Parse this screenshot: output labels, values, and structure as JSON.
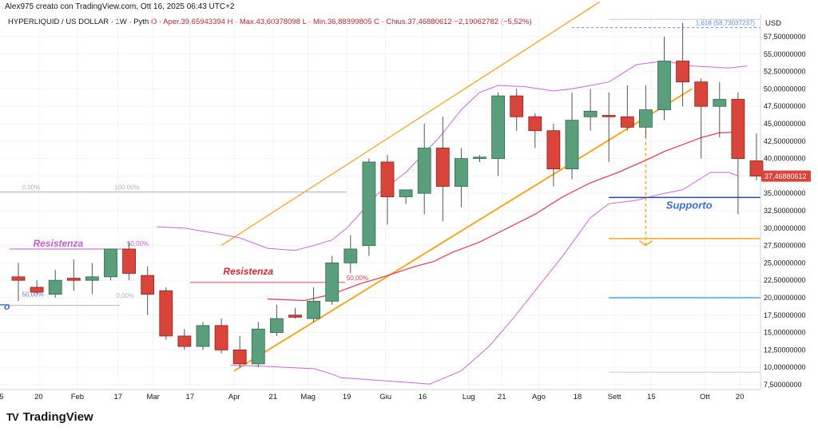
{
  "header": {
    "author_line": "Alex975 creato con TradingView.com, Ott 16, 2025 06:43 UTC+2",
    "symbol": "HYPERLIQUID / US DOLLAR · 1W · Pyth",
    "ohlc": "O · Aper.39,65943394  H · Max.43,60378098  L · Min.36,88899805  C · Chius.37,46880612  −2,19062782 (−5,52%)",
    "currency": "USD"
  },
  "brand": {
    "logo": "TV",
    "name": "TradingView"
  },
  "chart_data": {
    "type": "candlestick",
    "title": "HYPERLIQUID / US DOLLAR · 1W · Pyth",
    "interval": "1W",
    "ylim": [
      7.5,
      62.5
    ],
    "price_ticks": [
      "57,50000000",
      "55,00000000",
      "52,50000000",
      "50,00000000",
      "47,50000000",
      "45,00000000",
      "42,50000000",
      "40,00000000",
      "37,50000000",
      "35,00000000",
      "32,50000000",
      "30,00000000",
      "27,50000000",
      "25,00000000",
      "22,50000000",
      "20,00000000",
      "17,50000000",
      "15,00000000",
      "12,50000000",
      "10,00000000",
      "7,50000000"
    ],
    "price_tick_values": [
      57.5,
      55,
      52.5,
      50,
      47.5,
      45,
      42.5,
      40,
      37.5,
      35,
      32.5,
      30,
      27.5,
      25,
      22.5,
      20,
      17.5,
      15,
      12.5,
      10,
      7.5
    ],
    "x_ticks": [
      {
        "label": "5",
        "i": -1.3
      },
      {
        "label": "20",
        "i": 1.1
      },
      {
        "label": "Feb",
        "i": 3.2
      },
      {
        "label": "17",
        "i": 5.4
      },
      {
        "label": "Mar",
        "i": 7.3
      },
      {
        "label": "17",
        "i": 9.3
      },
      {
        "label": "Apr",
        "i": 11.7
      },
      {
        "label": "21",
        "i": 13.8
      },
      {
        "label": "Mag",
        "i": 15.7
      },
      {
        "label": "19",
        "i": 17.8
      },
      {
        "label": "Giu",
        "i": 19.9
      },
      {
        "label": "16",
        "i": 21.9
      },
      {
        "label": "Lug",
        "i": 24.4
      },
      {
        "label": "21",
        "i": 26.2
      },
      {
        "label": "Ago",
        "i": 28.2
      },
      {
        "label": "18",
        "i": 30.3
      },
      {
        "label": "Sett",
        "i": 32.3
      },
      {
        "label": "15",
        "i": 34.3
      },
      {
        "label": "Ott",
        "i": 37.2
      },
      {
        "label": "20",
        "i": 39.1
      }
    ],
    "last_price_label": "37,46880612",
    "candles": [
      {
        "o": 23.0,
        "h": 25.0,
        "l": 19.5,
        "c": 22.5
      },
      {
        "o": 21.5,
        "h": 22.5,
        "l": 20.5,
        "c": 20.8
      },
      {
        "o": 20.5,
        "h": 24.0,
        "l": 20.0,
        "c": 22.5
      },
      {
        "o": 22.8,
        "h": 25.5,
        "l": 21.0,
        "c": 22.5
      },
      {
        "o": 22.5,
        "h": 25.0,
        "l": 20.5,
        "c": 23.0
      },
      {
        "o": 23.0,
        "h": 27.0,
        "l": 22.5,
        "c": 27.0
      },
      {
        "o": 27.0,
        "h": 28.0,
        "l": 22.5,
        "c": 23.5
      },
      {
        "o": 23.2,
        "h": 24.5,
        "l": 17.5,
        "c": 20.5
      },
      {
        "o": 21.0,
        "h": 21.5,
        "l": 14.0,
        "c": 14.5
      },
      {
        "o": 14.5,
        "h": 15.5,
        "l": 12.5,
        "c": 13.0
      },
      {
        "o": 13.0,
        "h": 16.5,
        "l": 12.5,
        "c": 16.0
      },
      {
        "o": 16.0,
        "h": 17.0,
        "l": 12.0,
        "c": 12.5
      },
      {
        "o": 12.5,
        "h": 14.5,
        "l": 10.0,
        "c": 10.5
      },
      {
        "o": 10.5,
        "h": 16.5,
        "l": 10.0,
        "c": 15.5
      },
      {
        "o": 15.0,
        "h": 19.0,
        "l": 14.5,
        "c": 17.0
      },
      {
        "o": 17.5,
        "h": 18.5,
        "l": 17.0,
        "c": 17.2
      },
      {
        "o": 17.0,
        "h": 21.5,
        "l": 16.5,
        "c": 19.5
      },
      {
        "o": 19.5,
        "h": 26.0,
        "l": 19.0,
        "c": 25.0
      },
      {
        "o": 25.0,
        "h": 29.0,
        "l": 23.5,
        "c": 27.0
      },
      {
        "o": 27.5,
        "h": 40.0,
        "l": 26.0,
        "c": 39.5
      },
      {
        "o": 39.5,
        "h": 40.5,
        "l": 30.5,
        "c": 34.5
      },
      {
        "o": 34.5,
        "h": 35.5,
        "l": 33.5,
        "c": 35.5
      },
      {
        "o": 35.0,
        "h": 45.0,
        "l": 32.0,
        "c": 41.5
      },
      {
        "o": 41.5,
        "h": 46.0,
        "l": 31.0,
        "c": 36.0
      },
      {
        "o": 36.0,
        "h": 41.5,
        "l": 33.0,
        "c": 40.0
      },
      {
        "o": 40.0,
        "h": 40.5,
        "l": 39.5,
        "c": 40.2
      },
      {
        "o": 40.0,
        "h": 49.5,
        "l": 37.5,
        "c": 49.0
      },
      {
        "o": 49.0,
        "h": 50.0,
        "l": 44.0,
        "c": 46.0
      },
      {
        "o": 46.0,
        "h": 46.5,
        "l": 41.5,
        "c": 44.0
      },
      {
        "o": 44.0,
        "h": 45.0,
        "l": 36.0,
        "c": 38.5
      },
      {
        "o": 38.5,
        "h": 49.5,
        "l": 37.0,
        "c": 45.5
      },
      {
        "o": 46.0,
        "h": 50.0,
        "l": 44.0,
        "c": 46.8
      },
      {
        "o": 46.2,
        "h": 49.5,
        "l": 39.5,
        "c": 46.0
      },
      {
        "o": 46.0,
        "h": 50.5,
        "l": 44.0,
        "c": 44.5
      },
      {
        "o": 44.5,
        "h": 50.5,
        "l": 43.0,
        "c": 47.0
      },
      {
        "o": 47.0,
        "h": 57.5,
        "l": 45.5,
        "c": 54.0
      },
      {
        "o": 54.0,
        "h": 59.5,
        "l": 47.5,
        "c": 51.0
      },
      {
        "o": 51.0,
        "h": 51.5,
        "l": 40.0,
        "c": 47.5
      },
      {
        "o": 47.5,
        "h": 51.0,
        "l": 43.0,
        "c": 48.5
      },
      {
        "o": 48.5,
        "h": 49.5,
        "l": 32.0,
        "c": 40.0
      },
      {
        "o": 39.66,
        "h": 43.6,
        "l": 36.89,
        "c": 37.47
      }
    ],
    "ma_line": [
      [
        13.5,
        19.8
      ],
      [
        15.5,
        19.6
      ],
      [
        17,
        20.5
      ],
      [
        18.5,
        22
      ],
      [
        19.8,
        23
      ],
      [
        21.5,
        24.5
      ],
      [
        22.5,
        25.2
      ],
      [
        23.5,
        26.5
      ],
      [
        25,
        28
      ],
      [
        26.5,
        30
      ],
      [
        28,
        32
      ],
      [
        29.5,
        34.5
      ],
      [
        31,
        36.5
      ],
      [
        32.5,
        38
      ],
      [
        34.2,
        40
      ],
      [
        35,
        41
      ],
      [
        36,
        42
      ],
      [
        37,
        43
      ],
      [
        38,
        43.7
      ],
      [
        39,
        43.8
      ]
    ],
    "bollinger_upper": [
      [
        7.5,
        30.2
      ],
      [
        9,
        30
      ],
      [
        10.8,
        29.2
      ],
      [
        12,
        28.6
      ],
      [
        13.5,
        27.1
      ],
      [
        15,
        26.8
      ],
      [
        16,
        27.5
      ],
      [
        17,
        28.3
      ],
      [
        17.8,
        30
      ],
      [
        19.5,
        35
      ],
      [
        21,
        38
      ],
      [
        22.8,
        43
      ],
      [
        24,
        47
      ],
      [
        25,
        49.5
      ],
      [
        26,
        50.5
      ],
      [
        27.5,
        50.3
      ],
      [
        29,
        49.7
      ],
      [
        30,
        50
      ],
      [
        31,
        50.5
      ],
      [
        32,
        51
      ],
      [
        33.5,
        53.5
      ],
      [
        35,
        54
      ],
      [
        36.5,
        53.3
      ],
      [
        38.5,
        53
      ],
      [
        39.5,
        53.3
      ]
    ],
    "bollinger_lower": [
      [
        11.5,
        10.3
      ],
      [
        13,
        10.2
      ],
      [
        14.5,
        10
      ],
      [
        16,
        9.8
      ],
      [
        16.8,
        9.2
      ],
      [
        17.5,
        8.5
      ],
      [
        22.3,
        7.6
      ],
      [
        24,
        9.5
      ],
      [
        25.5,
        13
      ],
      [
        26.8,
        17
      ],
      [
        28,
        21
      ],
      [
        29.5,
        26
      ],
      [
        31,
        31.5
      ],
      [
        32,
        33.5
      ],
      [
        33.5,
        34
      ],
      [
        35,
        35
      ],
      [
        36,
        35.5
      ],
      [
        37.5,
        38
      ],
      [
        38.5,
        38
      ],
      [
        39,
        37.5
      ]
    ],
    "channel_upper": [
      [
        11,
        27.5
      ],
      [
        31.5,
        62.5
      ]
    ],
    "channel_lower": [
      [
        11.7,
        9.5
      ],
      [
        36.5,
        50
      ]
    ],
    "fib_left": {
      "i0": -1.6,
      "i1": 17.8,
      "y0": 35.2,
      "y50": 27.0,
      "y100": 18.9,
      "labels": [
        "0,00%",
        "100,00%",
        "50,00%",
        "50,00%",
        "0,00%"
      ]
    },
    "resistance_1": {
      "i0": -0.5,
      "i1": 5.8,
      "y": 27.0,
      "label": "Resistenza",
      "level_label": "50,00%"
    },
    "resistance_2": {
      "i0": 9.3,
      "i1": 17.7,
      "y": 22.2,
      "label": "Resistenza",
      "level_label": "50,00%"
    },
    "support": {
      "i0": 32.0,
      "i1": 40.2,
      "y": 34.4,
      "label": "Supporto"
    },
    "fib_ext_label": "1,618 (58,73037237)",
    "fib_ext": {
      "i0": 30.0,
      "i1": 40.2,
      "y": 58.8
    },
    "fib_top_line": {
      "i0": 32.0,
      "i1": 40.2,
      "y": 60.0
    },
    "orange_level": {
      "i0": 32.0,
      "i1": 40.2,
      "y": 28.5
    },
    "blue_level": {
      "i0": 32.0,
      "i1": 40.2,
      "y": 20.0
    },
    "gray_bottom_level": {
      "i0": 32.0,
      "i1": 40.2,
      "y": 9.3
    },
    "left_blue_label": "o",
    "arrow": {
      "i": 34.0,
      "y0": 44,
      "y1": 27.5
    }
  }
}
